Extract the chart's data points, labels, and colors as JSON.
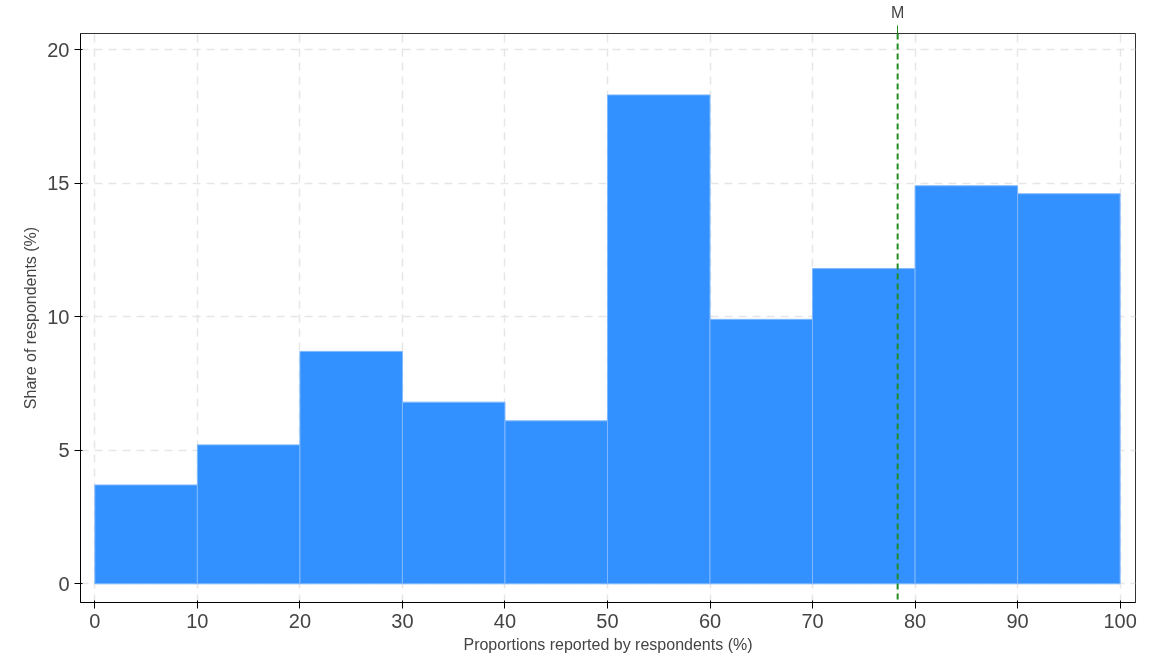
{
  "chart_data": {
    "type": "histogram",
    "xlabel": "Proportions reported by respondents (%)",
    "ylabel": "Share of respondents (%)",
    "bins": [
      0,
      10,
      20,
      30,
      40,
      50,
      60,
      70,
      80,
      90,
      100
    ],
    "values": [
      3.7,
      5.2,
      8.7,
      6.8,
      6.1,
      18.3,
      9.9,
      11.8,
      14.9,
      14.6
    ],
    "color": "#3390ff",
    "xlim": [
      -1.4,
      101.5
    ],
    "ylim": [
      -0.7,
      20.6
    ],
    "xticks": [
      0,
      10,
      20,
      30,
      40,
      50,
      60,
      70,
      80,
      90,
      100
    ],
    "yticks": [
      0,
      5,
      10,
      15,
      20
    ],
    "grid": true,
    "ref_lines": [
      {
        "axis": "x",
        "value": 78.3,
        "label": "M",
        "color": "#228b22",
        "line_style": "dashed"
      }
    ]
  }
}
